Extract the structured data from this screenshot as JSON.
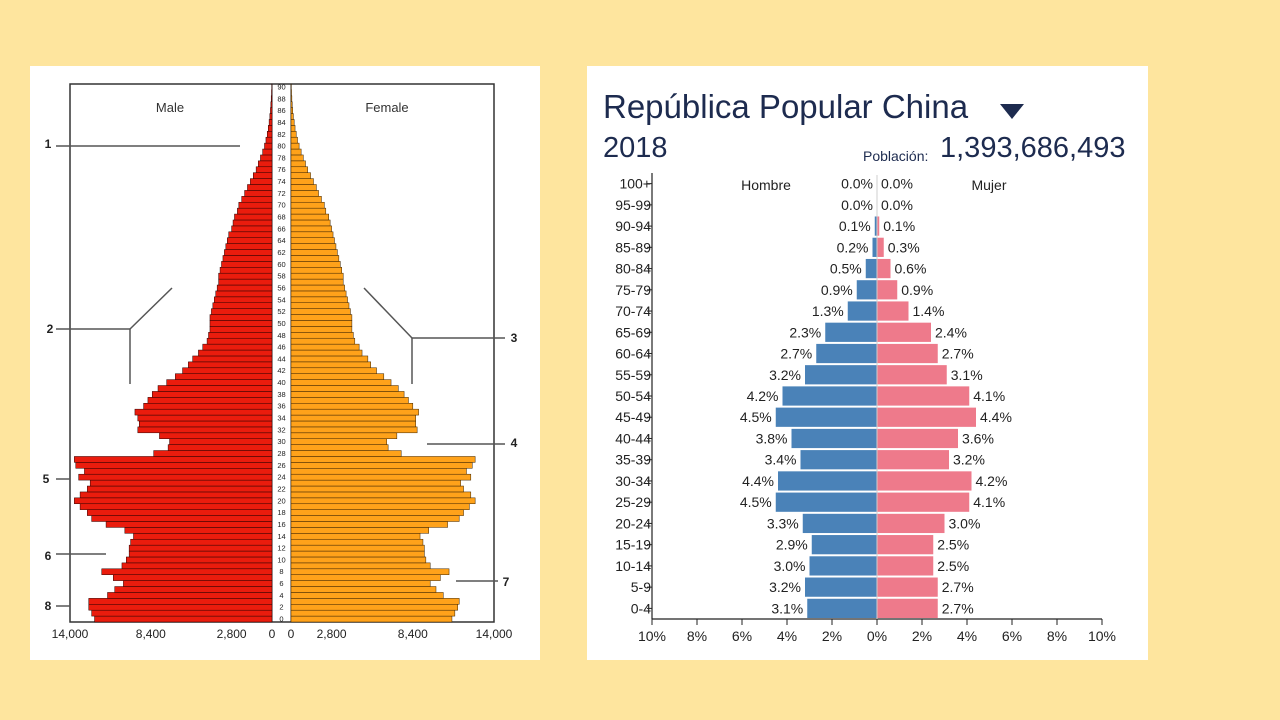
{
  "chart_data": [
    {
      "type": "bar",
      "orientation": "population-pyramid",
      "title": "",
      "male_label": "Male",
      "female_label": "Female",
      "x_ticks_male": [
        "14,000",
        "8,400",
        "2,800",
        "0"
      ],
      "x_ticks_female": [
        "0",
        "2,800",
        "8,400",
        "14,000"
      ],
      "xlim": [
        0,
        14000
      ],
      "age_labels": [
        "90",
        "88",
        "86",
        "84",
        "82",
        "80",
        "78",
        "76",
        "74",
        "72",
        "70",
        "68",
        "66",
        "64",
        "62",
        "60",
        "58",
        "56",
        "54",
        "52",
        "50",
        "48",
        "46",
        "44",
        "42",
        "40",
        "38",
        "36",
        "34",
        "32",
        "30",
        "28",
        "26",
        "24",
        "22",
        "20",
        "18",
        "16",
        "14",
        "12",
        "10",
        "8",
        "6",
        "4",
        "2",
        "0"
      ],
      "ages": [
        0,
        1,
        2,
        3,
        4,
        5,
        6,
        7,
        8,
        9,
        10,
        11,
        12,
        13,
        14,
        15,
        16,
        17,
        18,
        19,
        20,
        21,
        22,
        23,
        24,
        25,
        26,
        27,
        28,
        29,
        30,
        31,
        32,
        33,
        34,
        35,
        36,
        37,
        38,
        39,
        40,
        41,
        42,
        43,
        44,
        45,
        46,
        47,
        48,
        49,
        50,
        51,
        52,
        53,
        54,
        55,
        56,
        57,
        58,
        59,
        60,
        61,
        62,
        63,
        64,
        65,
        66,
        67,
        68,
        69,
        70,
        71,
        72,
        73,
        74,
        75,
        76,
        77,
        78,
        79,
        80,
        81,
        82,
        83,
        84,
        85,
        86,
        87,
        88,
        89,
        90
      ],
      "series": [
        {
          "name": "Male",
          "color": "#ea1c0d",
          "values": [
            12300,
            12500,
            12700,
            12700,
            11400,
            10900,
            10300,
            11000,
            11800,
            10400,
            10100,
            9900,
            9900,
            9800,
            9600,
            10200,
            11500,
            12500,
            12800,
            13300,
            13700,
            13300,
            12800,
            12600,
            13400,
            13000,
            13600,
            13700,
            8200,
            7200,
            7100,
            7800,
            9300,
            9200,
            9300,
            9500,
            8900,
            8600,
            8300,
            7900,
            7300,
            6700,
            6200,
            5800,
            5500,
            5100,
            4800,
            4500,
            4400,
            4300,
            4300,
            4300,
            4200,
            4100,
            4000,
            3900,
            3800,
            3700,
            3700,
            3600,
            3500,
            3400,
            3300,
            3200,
            3100,
            3000,
            2800,
            2700,
            2600,
            2400,
            2300,
            2100,
            1900,
            1700,
            1500,
            1300,
            1100,
            950,
            800,
            650,
            520,
            420,
            330,
            260,
            200,
            150,
            110,
            80,
            55,
            35,
            20
          ]
        },
        {
          "name": "Female",
          "color": "#ffa21a",
          "values": [
            11100,
            11300,
            11500,
            11600,
            10500,
            10000,
            9600,
            10300,
            10900,
            9600,
            9300,
            9200,
            9200,
            9100,
            8900,
            9500,
            10800,
            11600,
            11900,
            12300,
            12700,
            12400,
            11900,
            11700,
            12400,
            12100,
            12500,
            12700,
            7600,
            6700,
            6600,
            7300,
            8700,
            8600,
            8600,
            8800,
            8400,
            8100,
            7800,
            7400,
            6900,
            6400,
            5900,
            5500,
            5300,
            4900,
            4700,
            4400,
            4300,
            4200,
            4200,
            4200,
            4100,
            4000,
            3900,
            3800,
            3700,
            3600,
            3600,
            3500,
            3400,
            3300,
            3200,
            3100,
            3000,
            2900,
            2800,
            2700,
            2600,
            2400,
            2300,
            2100,
            1900,
            1750,
            1550,
            1350,
            1150,
            1000,
            850,
            700,
            560,
            450,
            360,
            280,
            220,
            165,
            120,
            85,
            60,
            38,
            22
          ]
        }
      ],
      "annotation_labels": [
        "1",
        "2",
        "3",
        "4",
        "5",
        "6",
        "7",
        "8"
      ]
    },
    {
      "type": "bar",
      "orientation": "population-pyramid",
      "title": "República Popular China",
      "year": "2018",
      "population_label": "Población:",
      "population_value": "1,393,686,493",
      "male_label": "Hombre",
      "female_label": "Mujer",
      "xlim": [
        -10,
        10
      ],
      "x_ticks": [
        "10%",
        "8%",
        "6%",
        "4%",
        "2%",
        "0%",
        "2%",
        "4%",
        "6%",
        "8%",
        "10%"
      ],
      "categories": [
        "100+",
        "95-99",
        "90-94",
        "85-89",
        "80-84",
        "75-79",
        "70-74",
        "65-69",
        "60-64",
        "55-59",
        "50-54",
        "45-49",
        "40-44",
        "35-39",
        "30-34",
        "25-29",
        "20-24",
        "15-19",
        "10-14",
        "5-9",
        "0-4"
      ],
      "series": [
        {
          "name": "Hombre",
          "color": "#4a82b8",
          "values": [
            0.0,
            0.0,
            0.1,
            0.2,
            0.5,
            0.9,
            1.3,
            2.3,
            2.7,
            3.2,
            4.2,
            4.5,
            3.8,
            3.4,
            4.4,
            4.5,
            3.3,
            2.9,
            3.0,
            3.2,
            3.1
          ],
          "labels": [
            "0.0%",
            "0.0%",
            "0.1%",
            "0.2%",
            "0.5%",
            "0.9%",
            "1.3%",
            "2.3%",
            "2.7%",
            "3.2%",
            "4.2%",
            "4.5%",
            "3.8%",
            "3.4%",
            "4.4%",
            "4.5%",
            "3.3%",
            "2.9%",
            "3.0%",
            "3.2%",
            "3.1%"
          ]
        },
        {
          "name": "Mujer",
          "color": "#ee7a8b",
          "values": [
            0.0,
            0.0,
            0.1,
            0.3,
            0.6,
            0.9,
            1.4,
            2.4,
            2.7,
            3.1,
            4.1,
            4.4,
            3.6,
            3.2,
            4.2,
            4.1,
            3.0,
            2.5,
            2.5,
            2.7,
            2.7
          ],
          "labels": [
            "0.0%",
            "0.0%",
            "0.1%",
            "0.3%",
            "0.6%",
            "0.9%",
            "1.4%",
            "2.4%",
            "2.7%",
            "3.1%",
            "4.1%",
            "4.4%",
            "3.6%",
            "3.2%",
            "4.2%",
            "4.1%",
            "3.0%",
            "2.5%",
            "2.5%",
            "2.7%",
            "2.7%"
          ]
        }
      ]
    }
  ]
}
